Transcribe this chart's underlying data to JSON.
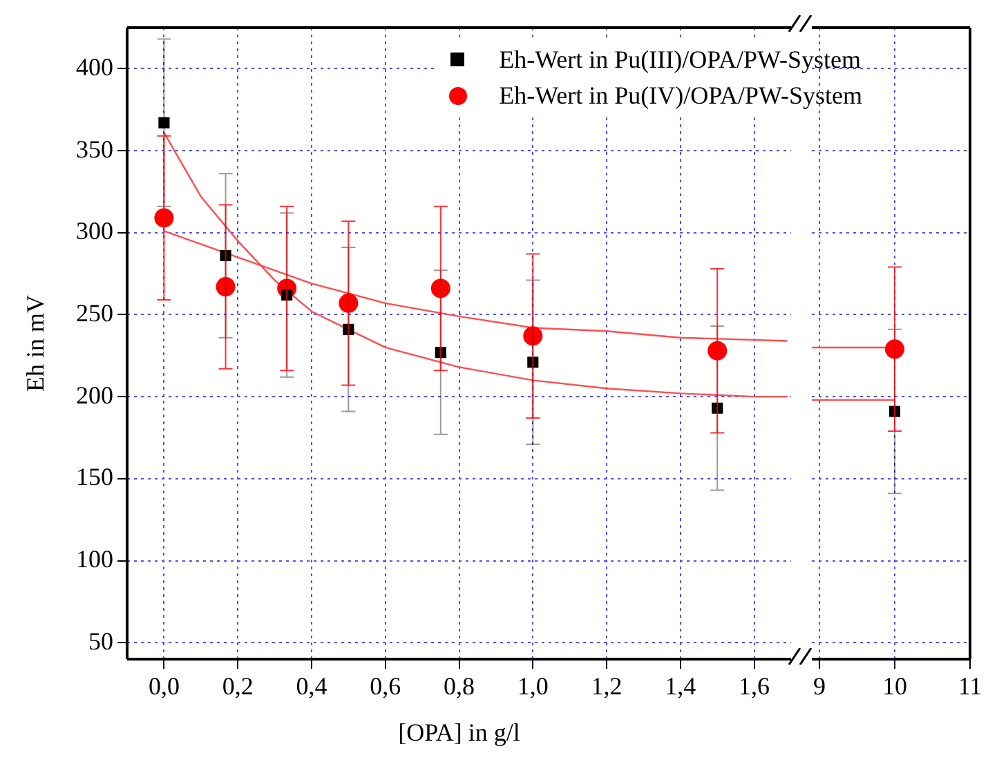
{
  "chart_data": [
    {
      "type": "scatter",
      "xlabel": "[OPA] in g/l",
      "ylabel": "Eh in mV",
      "xlim": [
        -0.1,
        1.7
      ],
      "xticks": [
        {
          "value": 0,
          "label": "0,0"
        },
        {
          "value": 0.2,
          "label": "0,2"
        },
        {
          "value": 0.4,
          "label": "0,4"
        },
        {
          "value": 0.6,
          "label": "0,6"
        },
        {
          "value": 0.8,
          "label": "0,8"
        },
        {
          "value": 1,
          "label": "1,0"
        },
        {
          "value": 1.2,
          "label": "1,2"
        },
        {
          "value": 1.4,
          "label": "1,4"
        },
        {
          "value": 1.6,
          "label": "1,6"
        }
      ],
      "ylim": [
        40,
        425
      ],
      "yticks": [
        50,
        100,
        150,
        200,
        250,
        300,
        350,
        400
      ],
      "grid": true,
      "legend": "top right",
      "series": [
        {
          "name": "Eh-Wert in Pu(III)/OPA/PW-System",
          "color": "#000000",
          "marker": "square",
          "x": [
            0,
            0.167,
            0.333,
            0.5,
            0.75,
            1,
            1.5
          ],
          "values": [
            367,
            286,
            262,
            241,
            227,
            221,
            193
          ],
          "errors": [
            51,
            50,
            50,
            50,
            50,
            50,
            50
          ]
        },
        {
          "name": "Eh-Wert in Pu(IV)/OPA/PW-System",
          "color": "#ff0000",
          "marker": "circle",
          "x": [
            0,
            0.167,
            0.333,
            0.5,
            0.75,
            1,
            1.5
          ],
          "values": [
            309,
            267,
            266,
            257,
            266,
            237,
            228
          ],
          "errors": [
            50,
            50,
            50,
            50,
            50,
            50,
            50
          ]
        },
        {
          "type": "line",
          "color": "#ff4d4d",
          "marker": "none",
          "x": [
            0,
            0.1,
            0.2,
            0.3,
            0.4,
            0.6,
            0.8,
            1,
            1.2,
            1.4,
            1.6,
            1.69
          ],
          "values": [
            361,
            322,
            295,
            271,
            252,
            230,
            218,
            210,
            205,
            202,
            200,
            200
          ]
        },
        {
          "type": "line",
          "color": "#ff4d4d",
          "marker": "none",
          "x": [
            0,
            0.2,
            0.4,
            0.6,
            0.8,
            1,
            1.2,
            1.4,
            1.69
          ],
          "values": [
            301,
            285,
            269,
            257,
            249,
            242,
            240,
            236,
            234
          ]
        }
      ]
    },
    {
      "type": "scatter",
      "xlim": [
        8.9,
        11
      ],
      "xticks": [
        9,
        10,
        11
      ],
      "ylim": [
        40,
        425
      ],
      "yticks": [
        50,
        100,
        150,
        200,
        250,
        300,
        350,
        400
      ],
      "grid": true,
      "tick_labels": "x",
      "series": [
        {
          "color": "#000000",
          "marker": "square",
          "x": [
            10
          ],
          "values": [
            191
          ],
          "errors": [
            50
          ]
        },
        {
          "color": "#ff0000",
          "marker": "circle",
          "x": [
            10
          ],
          "values": [
            229
          ],
          "errors": [
            50
          ]
        },
        {
          "type": "line",
          "color": "#ff4d4d",
          "marker": "none",
          "x": [
            8.9,
            10
          ],
          "values": [
            198,
            198
          ]
        },
        {
          "type": "line",
          "color": "#ff4d4d",
          "marker": "none",
          "x": [
            8.9,
            10
          ],
          "values": [
            230,
            230
          ]
        }
      ]
    }
  ]
}
